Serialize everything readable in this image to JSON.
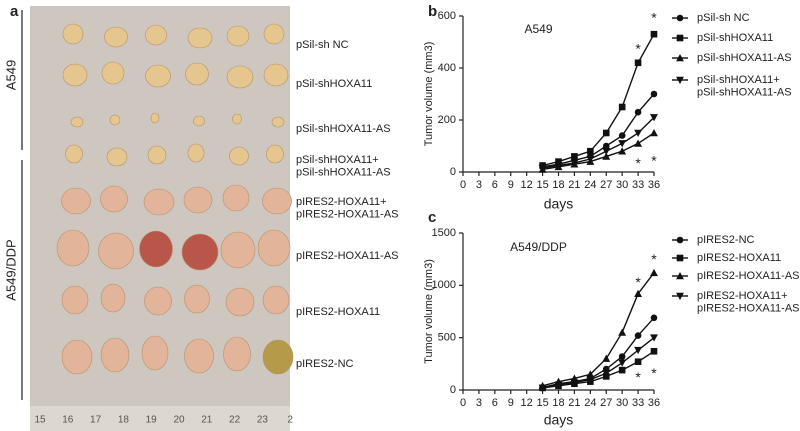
{
  "photo_panel": {
    "panel_label": "a",
    "groups": [
      "A549",
      "A549/DDP"
    ],
    "row_labels": [
      "pSil-sh NC",
      "pSil-shHOXA11",
      "pSil-shHOXA11-AS",
      "pSil-shHOXA11+\npSil-shHOXA11-AS",
      "pIRES2-HOXA11+\npIRES2-HOXA11-AS",
      "pIRES2-HOXA11-AS",
      "pIRES2-HOXA11",
      "pIRES2-NC"
    ],
    "ruler_labels": [
      "15",
      "16",
      "17",
      "18",
      "19",
      "20",
      "21",
      "22",
      "23",
      "2"
    ]
  },
  "chart_data": [
    {
      "type": "line",
      "panel_label": "b",
      "title": "A549",
      "x_label": "days",
      "y_label": "Tumor volume (mm3)",
      "x": [
        15,
        18,
        21,
        24,
        27,
        30,
        33,
        36
      ],
      "xlim": [
        0,
        36
      ],
      "xticks": [
        0,
        3,
        6,
        9,
        12,
        15,
        18,
        21,
        24,
        27,
        30,
        33,
        36
      ],
      "ylim": [
        0,
        600
      ],
      "yticks": [
        0,
        200,
        400,
        600
      ],
      "series": [
        {
          "name": "pSil-sh NC",
          "color": "#111111",
          "marker": "circle",
          "values": [
            20,
            30,
            45,
            60,
            100,
            140,
            230,
            300
          ]
        },
        {
          "name": "pSil-shHOXA11",
          "color": "#111111",
          "marker": "square",
          "values": [
            25,
            40,
            60,
            80,
            150,
            250,
            420,
            530
          ]
        },
        {
          "name": "pSil-shHOXA11-AS",
          "color": "#111111",
          "marker": "triangle",
          "values": [
            10,
            20,
            30,
            40,
            60,
            80,
            110,
            150
          ]
        },
        {
          "name": "pSil-shHOXA11+\npSil-shHOXA11-AS",
          "color": "#111111",
          "marker": "triangle-down",
          "values": [
            15,
            25,
            35,
            50,
            80,
            110,
            150,
            210
          ]
        }
      ],
      "annotations": [
        {
          "text": "*",
          "x": 33,
          "y": 470
        },
        {
          "text": "*",
          "x": 36,
          "y": 590
        },
        {
          "text": "*",
          "x": 33,
          "y": 30
        },
        {
          "text": "*",
          "x": 36,
          "y": 40
        }
      ]
    },
    {
      "type": "line",
      "panel_label": "c",
      "title": "A549/DDP",
      "x_label": "days",
      "y_label": "Tumor volume (mm3)",
      "x": [
        15,
        18,
        21,
        24,
        27,
        30,
        33,
        36
      ],
      "xlim": [
        0,
        36
      ],
      "xticks": [
        0,
        3,
        6,
        9,
        12,
        15,
        18,
        21,
        24,
        27,
        30,
        33,
        36
      ],
      "ylim": [
        0,
        1500
      ],
      "yticks": [
        0,
        500,
        1000,
        1500
      ],
      "series": [
        {
          "name": "pIRES2-NC",
          "color": "#111111",
          "marker": "circle",
          "values": [
            25,
            60,
            80,
            110,
            200,
            320,
            520,
            690
          ]
        },
        {
          "name": "pIRES2-HOXA11",
          "color": "#111111",
          "marker": "square",
          "values": [
            20,
            40,
            60,
            80,
            130,
            190,
            270,
            370
          ]
        },
        {
          "name": "pIRES2-HOXA11-AS",
          "color": "#111111",
          "marker": "triangle",
          "values": [
            40,
            80,
            110,
            150,
            300,
            550,
            920,
            1120
          ]
        },
        {
          "name": "pIRES2-HOXA11+\npIRES2-HOXA11-AS",
          "color": "#111111",
          "marker": "triangle-down",
          "values": [
            20,
            50,
            70,
            100,
            160,
            260,
            380,
            500
          ]
        }
      ],
      "annotations": [
        {
          "text": "*",
          "x": 33,
          "y": 1020
        },
        {
          "text": "*",
          "x": 36,
          "y": 1240
        },
        {
          "text": "*",
          "x": 33,
          "y": 110
        },
        {
          "text": "*",
          "x": 36,
          "y": 150
        }
      ]
    }
  ]
}
